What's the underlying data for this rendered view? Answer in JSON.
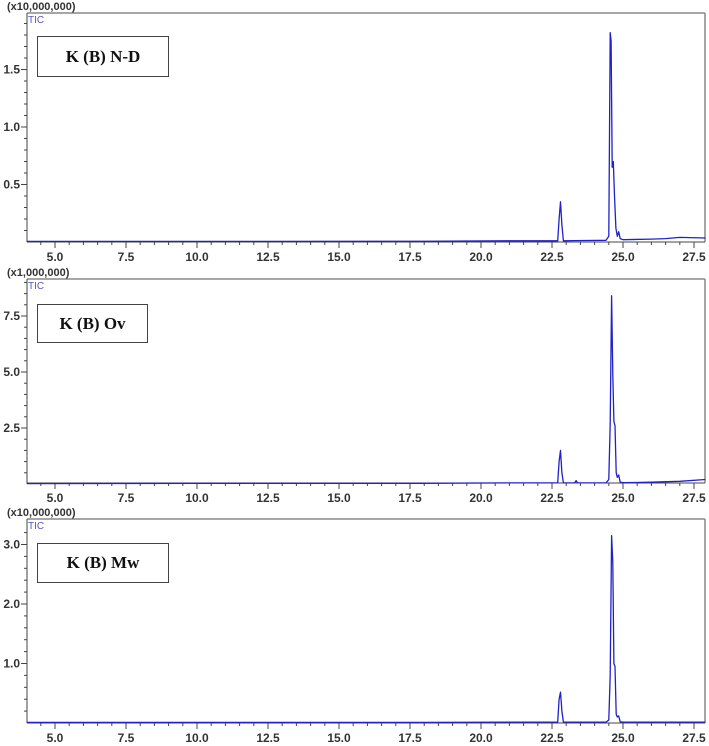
{
  "chart_data": [
    {
      "type": "line",
      "title": "K (B) N-D",
      "trace_label": "TIC",
      "y_scale_label": "(x10,000,000)",
      "xlabel": "",
      "ylabel": "",
      "xlim": [
        4.0,
        27.9
      ],
      "ylim": [
        0,
        1.95
      ],
      "x_ticks": [
        5.0,
        7.5,
        10.0,
        12.5,
        15.0,
        17.5,
        20.0,
        22.5,
        25.0,
        27.5
      ],
      "y_ticks": [
        0.5,
        1.0,
        1.5
      ],
      "grid": false,
      "series": [
        {
          "name": "TIC",
          "color": "#2020cc",
          "x": [
            4.0,
            10.0,
            18.0,
            21.0,
            22.7,
            22.75,
            22.8,
            22.85,
            22.9,
            23.3,
            24.4,
            24.5,
            24.55,
            24.58,
            24.62,
            24.66,
            24.7,
            24.75,
            24.8,
            24.85,
            24.9,
            25.0,
            26.0,
            26.5,
            27.0,
            27.9
          ],
          "y": [
            0.005,
            0.005,
            0.006,
            0.01,
            0.01,
            0.2,
            0.35,
            0.15,
            0.01,
            0.012,
            0.015,
            0.05,
            1.82,
            1.75,
            0.65,
            0.7,
            0.4,
            0.12,
            0.05,
            0.09,
            0.03,
            0.02,
            0.025,
            0.03,
            0.04,
            0.035
          ]
        }
      ]
    },
    {
      "type": "line",
      "title": "K (B) Ov",
      "trace_label": "TIC",
      "y_scale_label": "(x1,000,000)",
      "xlabel": "",
      "ylabel": "",
      "xlim": [
        4.0,
        27.9
      ],
      "ylim": [
        0,
        9.1
      ],
      "x_ticks": [
        5.0,
        7.5,
        10.0,
        12.5,
        15.0,
        17.5,
        20.0,
        22.5,
        25.0,
        27.5
      ],
      "y_ticks": [
        2.5,
        5.0,
        7.5
      ],
      "grid": false,
      "series": [
        {
          "name": "TIC",
          "color": "#2020cc",
          "x": [
            4.0,
            10.0,
            18.0,
            21.0,
            22.7,
            22.75,
            22.8,
            22.85,
            22.9,
            23.3,
            23.35,
            23.4,
            24.4,
            24.5,
            24.55,
            24.6,
            24.64,
            24.68,
            24.72,
            24.76,
            24.8,
            24.85,
            24.9,
            25.0,
            26.0,
            27.0,
            27.9
          ],
          "y": [
            0.02,
            0.03,
            0.03,
            0.05,
            0.05,
            1.0,
            1.5,
            0.5,
            0.05,
            0.05,
            0.15,
            0.05,
            0.05,
            0.2,
            2.7,
            8.4,
            4.9,
            2.8,
            2.6,
            0.5,
            0.3,
            0.4,
            0.08,
            0.06,
            0.08,
            0.12,
            0.2
          ]
        }
      ]
    },
    {
      "type": "line",
      "title": "K (B) Mw",
      "trace_label": "TIC",
      "y_scale_label": "(x10,000,000)",
      "xlabel": "",
      "ylabel": "",
      "xlim": [
        4.0,
        27.9
      ],
      "ylim": [
        0,
        3.4
      ],
      "x_ticks": [
        5.0,
        7.5,
        10.0,
        12.5,
        15.0,
        17.5,
        20.0,
        22.5,
        25.0,
        27.5
      ],
      "y_ticks": [
        1.0,
        2.0,
        3.0
      ],
      "grid": false,
      "series": [
        {
          "name": "TIC",
          "color": "#2020cc",
          "x": [
            4.0,
            10.0,
            18.0,
            21.0,
            22.7,
            22.75,
            22.8,
            22.85,
            22.9,
            23.3,
            24.4,
            24.5,
            24.55,
            24.6,
            24.64,
            24.68,
            24.72,
            24.76,
            24.8,
            24.85,
            24.9,
            25.0,
            26.0,
            27.0,
            27.9
          ],
          "y": [
            0.01,
            0.01,
            0.01,
            0.015,
            0.015,
            0.4,
            0.52,
            0.2,
            0.015,
            0.015,
            0.015,
            0.05,
            0.8,
            3.15,
            2.7,
            1.0,
            0.95,
            0.15,
            0.1,
            0.12,
            0.02,
            0.015,
            0.015,
            0.015,
            0.015
          ]
        }
      ]
    }
  ],
  "panels": [
    {
      "scale": "(x10,000,000)",
      "trace": "TIC",
      "sample": "K (B) N-D"
    },
    {
      "scale": "(x1,000,000)",
      "trace": "TIC",
      "sample": "K (B) Ov"
    },
    {
      "scale": "(x10,000,000)",
      "trace": "TIC",
      "sample": "K (B) Mw"
    }
  ]
}
